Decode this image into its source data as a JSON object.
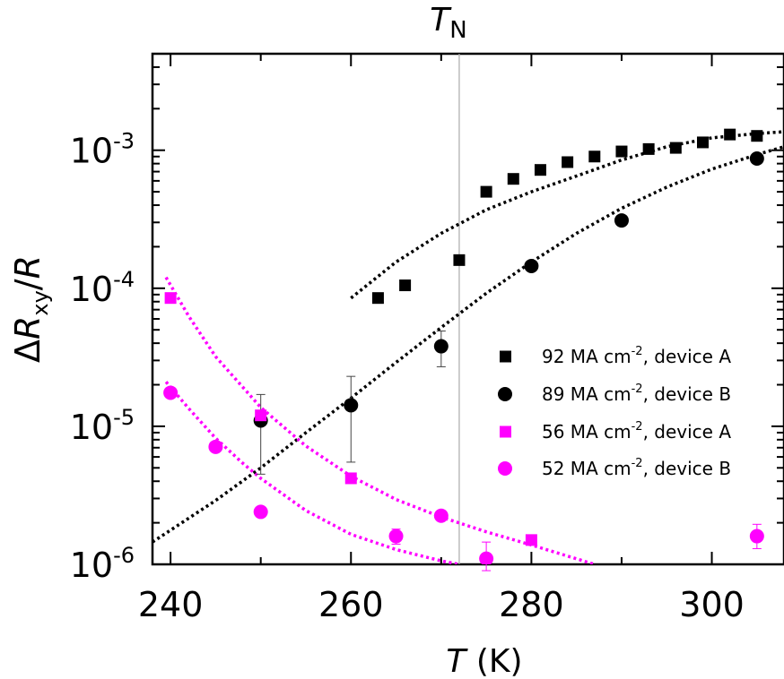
{
  "chart_data": {
    "type": "scatter",
    "xlabel": {
      "symbol": "T",
      "unit": " (K)"
    },
    "ylabel": {
      "delta": "Δ",
      "symbol": "R",
      "subscript": "xy",
      "tail": "/",
      "denominator": "R"
    },
    "top_annotation": {
      "symbol": "T",
      "subscript": "N",
      "x": 272
    },
    "xlim": [
      238,
      308
    ],
    "ylim": [
      1e-06,
      0.005
    ],
    "y_scale": "log",
    "grid": false,
    "legend_position": "right-middle",
    "x_ticks": [
      {
        "value": 240,
        "label": "240"
      },
      {
        "value": 260,
        "label": "260"
      },
      {
        "value": 280,
        "label": "280"
      },
      {
        "value": 300,
        "label": "300"
      }
    ],
    "y_ticks": [
      {
        "value": 1e-06,
        "base": "10",
        "exp": "-6"
      },
      {
        "value": 1e-05,
        "base": "10",
        "exp": "-5"
      },
      {
        "value": 0.0001,
        "base": "10",
        "exp": "-4"
      },
      {
        "value": 0.001,
        "base": "10",
        "exp": "-3"
      }
    ],
    "series": [
      {
        "name": {
          "prefix": "92 MA cm",
          "sup": "-2",
          "suffix": ", device A"
        },
        "marker": "square",
        "color": "#000000",
        "points": [
          {
            "x": 263,
            "y": 8.5e-05
          },
          {
            "x": 266,
            "y": 0.000105
          },
          {
            "x": 272,
            "y": 0.00016
          },
          {
            "x": 275,
            "y": 0.0005
          },
          {
            "x": 278,
            "y": 0.00062
          },
          {
            "x": 281,
            "y": 0.00072
          },
          {
            "x": 284,
            "y": 0.00082
          },
          {
            "x": 287,
            "y": 0.0009
          },
          {
            "x": 290,
            "y": 0.00098
          },
          {
            "x": 293,
            "y": 0.00102
          },
          {
            "x": 296,
            "y": 0.00104
          },
          {
            "x": 299,
            "y": 0.00114
          },
          {
            "x": 302,
            "y": 0.0013
          },
          {
            "x": 305,
            "y": 0.00127
          }
        ],
        "fit": [
          {
            "x": 260,
            "y": 8.5e-05
          },
          {
            "x": 265,
            "y": 0.000155
          },
          {
            "x": 270,
            "y": 0.00025
          },
          {
            "x": 275,
            "y": 0.00037
          },
          {
            "x": 280,
            "y": 0.0005
          },
          {
            "x": 285,
            "y": 0.00065
          },
          {
            "x": 290,
            "y": 0.00085
          },
          {
            "x": 295,
            "y": 0.00106
          },
          {
            "x": 300,
            "y": 0.00123
          },
          {
            "x": 305,
            "y": 0.00132
          },
          {
            "x": 308,
            "y": 0.00136
          }
        ]
      },
      {
        "name": {
          "prefix": "89 MA cm",
          "sup": "-2",
          "suffix": ", device B"
        },
        "marker": "circle",
        "color": "#000000",
        "points": [
          {
            "x": 250,
            "y": 1.1e-05,
            "err": [
              4.5e-06,
              1.7e-05
            ]
          },
          {
            "x": 260,
            "y": 1.42e-05,
            "err": [
              5.5e-06,
              2.3e-05
            ]
          },
          {
            "x": 270,
            "y": 3.8e-05,
            "err": [
              2.7e-05,
              4.9e-05
            ]
          },
          {
            "x": 280,
            "y": 0.000145
          },
          {
            "x": 290,
            "y": 0.00031
          },
          {
            "x": 305,
            "y": 0.00087
          }
        ],
        "fit": [
          {
            "x": 238,
            "y": 1.45e-06
          },
          {
            "x": 245,
            "y": 2.9e-06
          },
          {
            "x": 250,
            "y": 5e-06
          },
          {
            "x": 255,
            "y": 9e-06
          },
          {
            "x": 260,
            "y": 1.6e-05
          },
          {
            "x": 265,
            "y": 2.9e-05
          },
          {
            "x": 270,
            "y": 5.2e-05
          },
          {
            "x": 275,
            "y": 9.2e-05
          },
          {
            "x": 280,
            "y": 0.000155
          },
          {
            "x": 285,
            "y": 0.00025
          },
          {
            "x": 290,
            "y": 0.00038
          },
          {
            "x": 295,
            "y": 0.00054
          },
          {
            "x": 300,
            "y": 0.00073
          },
          {
            "x": 305,
            "y": 0.00093
          },
          {
            "x": 308,
            "y": 0.00106
          }
        ]
      },
      {
        "name": {
          "prefix": "56 MA cm",
          "sup": "-2",
          "suffix": ", device A"
        },
        "marker": "square",
        "color": "#ff00ff",
        "points": [
          {
            "x": 240,
            "y": 8.5e-05
          },
          {
            "x": 250,
            "y": 1.2e-05
          },
          {
            "x": 260,
            "y": 4.2e-06
          },
          {
            "x": 280,
            "y": 1.5e-06
          }
        ],
        "fit": [
          {
            "x": 239.5,
            "y": 0.00012
          },
          {
            "x": 242,
            "y": 6.3e-05
          },
          {
            "x": 245,
            "y": 3.2e-05
          },
          {
            "x": 250,
            "y": 1.37e-05
          },
          {
            "x": 255,
            "y": 7.2e-06
          },
          {
            "x": 260,
            "y": 4.35e-06
          },
          {
            "x": 265,
            "y": 2.95e-06
          },
          {
            "x": 270,
            "y": 2.2e-06
          },
          {
            "x": 275,
            "y": 1.72e-06
          },
          {
            "x": 280,
            "y": 1.38e-06
          },
          {
            "x": 287,
            "y": 1e-06
          }
        ]
      },
      {
        "name": {
          "prefix": "52 MA cm",
          "sup": "-2",
          "suffix": ", device B"
        },
        "marker": "circle",
        "color": "#ff00ff",
        "points": [
          {
            "x": 240,
            "y": 1.75e-05
          },
          {
            "x": 245,
            "y": 7.1e-06
          },
          {
            "x": 250,
            "y": 2.4e-06
          },
          {
            "x": 265,
            "y": 1.6e-06,
            "err": [
              1.4e-06,
              1.8e-06
            ]
          },
          {
            "x": 270,
            "y": 2.25e-06
          },
          {
            "x": 275,
            "y": 1.1e-06,
            "err": [
              9e-07,
              1.45e-06
            ]
          },
          {
            "x": 305,
            "y": 1.6e-06,
            "err": [
              1.3e-06,
              1.95e-06
            ]
          }
        ],
        "fit": [
          {
            "x": 239.5,
            "y": 2.1e-05
          },
          {
            "x": 242,
            "y": 1.35e-05
          },
          {
            "x": 245,
            "y": 8.2e-06
          },
          {
            "x": 248,
            "y": 5.4e-06
          },
          {
            "x": 250,
            "y": 4.2e-06
          },
          {
            "x": 255,
            "y": 2.45e-06
          },
          {
            "x": 260,
            "y": 1.65e-06
          },
          {
            "x": 265,
            "y": 1.28e-06
          },
          {
            "x": 270,
            "y": 1.06e-06
          },
          {
            "x": 272,
            "y": 1e-06
          }
        ]
      }
    ]
  }
}
